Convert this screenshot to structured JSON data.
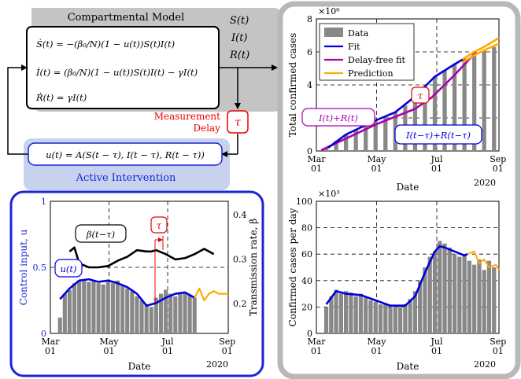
{
  "model": {
    "title": "Compartmental Model",
    "eq_s": "Ṡ(t) = −(β₀/N)(1 − u(t))S(t)I(t)",
    "eq_i": "İ(t) = (β₀/N)(1 − u(t))S(t)I(t) − γI(t)",
    "eq_r": "Ṙ(t) = γI(t)",
    "out_s": "S(t)",
    "out_i": "I(t)",
    "out_r": "R(t)"
  },
  "delay": {
    "line1": "Measurement",
    "line2": "Delay",
    "symbol": "τ"
  },
  "intervention": {
    "formula": "u(t) = A(S(t − τ), I(t − τ), R(t − τ))",
    "label": "Active Intervention"
  },
  "colors": {
    "fit": "#0000dd",
    "delay_free": "#aa00aa",
    "prediction": "#ffaa00",
    "data": "#888888",
    "delay": "#ee0000"
  },
  "charts": {
    "cumulative": {
      "type": "bar",
      "ylabel": "Total confirmed cases",
      "exponent": "×10⁶",
      "xlabel": "Date",
      "year": "2020",
      "yticks": [
        "0",
        "2",
        "4",
        "6",
        "8"
      ],
      "xticks": [
        [
          "Mar",
          "01"
        ],
        [
          "May",
          "01"
        ],
        [
          "Jul",
          "01"
        ],
        [
          "Sep",
          "01"
        ]
      ],
      "legend": [
        "Data",
        "Fit",
        "Delay-free fit",
        "Prediction"
      ],
      "ann_ir": "I(t)+R(t)",
      "ann_irdelay": "I(t−τ)+R(t−τ)",
      "ann_tau": "τ",
      "ylim": [
        0,
        8
      ],
      "xlim": [
        0,
        185
      ],
      "data_x": [
        10,
        20,
        30,
        40,
        50,
        60,
        70,
        80,
        90,
        100,
        110,
        120,
        130,
        140,
        150,
        160,
        170,
        180
      ],
      "data_y": [
        0.2,
        0.6,
        1.0,
        1.3,
        1.55,
        1.8,
        2.05,
        2.35,
        2.75,
        3.3,
        3.9,
        4.5,
        4.9,
        5.3,
        5.6,
        5.9,
        6.1,
        6.3
      ],
      "fit_x": [
        12,
        30,
        60,
        80,
        100,
        120,
        140,
        150
      ],
      "fit_y": [
        0.2,
        1.0,
        1.85,
        2.35,
        3.3,
        4.5,
        5.25,
        5.6
      ],
      "dfree_x": [
        5,
        30,
        60,
        80,
        100,
        120
      ],
      "dfree_y": [
        0.05,
        1.05,
        1.85,
        2.35,
        3.3,
        4.5
      ],
      "dfree2_x": [
        5,
        60,
        100,
        117,
        140,
        162
      ],
      "dfree2_y": [
        0.05,
        1.6,
        2.55,
        3.25,
        4.6,
        6.0
      ],
      "pred_x": [
        148,
        160,
        170,
        185
      ],
      "pred_y": [
        5.55,
        6.0,
        6.3,
        6.85
      ]
    },
    "daily": {
      "type": "bar",
      "ylabel": "Confirmed cases per day",
      "exponent": "×10³",
      "xlabel": "Date",
      "year": "2020",
      "yticks": [
        "0",
        "20",
        "40",
        "60",
        "80",
        "100"
      ],
      "xticks": [
        [
          "Mar",
          "01"
        ],
        [
          "May",
          "01"
        ],
        [
          "Jul",
          "01"
        ],
        [
          "Sep",
          "01"
        ]
      ],
      "ylim": [
        0,
        100
      ],
      "xlim": [
        0,
        185
      ],
      "data_x": [
        10,
        15,
        20,
        25,
        30,
        35,
        40,
        45,
        50,
        55,
        60,
        65,
        70,
        75,
        80,
        85,
        90,
        95,
        100,
        105,
        110,
        115,
        120,
        125,
        130,
        135,
        140,
        145,
        150,
        155,
        160,
        165,
        170,
        175,
        180
      ],
      "data_y": [
        20,
        28,
        33,
        30,
        32,
        31,
        28,
        30,
        27,
        25,
        24,
        22,
        22,
        20,
        21,
        20,
        22,
        26,
        32,
        40,
        50,
        58,
        62,
        70,
        68,
        65,
        60,
        58,
        60,
        55,
        52,
        56,
        48,
        55,
        50
      ],
      "fit_x": [
        10,
        20,
        30,
        45,
        60,
        75,
        90,
        100,
        110,
        120,
        125,
        130,
        140,
        150,
        153
      ],
      "fit_y": [
        22,
        32,
        30,
        29,
        25,
        21,
        21,
        28,
        46,
        62,
        66,
        65,
        62,
        59,
        60
      ],
      "pred_x": [
        153,
        160,
        165,
        170,
        175,
        182,
        185
      ],
      "pred_y": [
        60,
        62,
        53,
        56,
        50,
        52,
        48
      ]
    },
    "control": {
      "type": "line",
      "ylabel_left": "Control input, u",
      "ylabel_right": "Transmission rate, β",
      "xlabel": "Date",
      "year": "2020",
      "yticks_left": [
        "0",
        "0.5",
        "1"
      ],
      "yticks_right": [
        "0.2",
        "0.3",
        "0.4"
      ],
      "xticks": [
        [
          "Mar",
          "01"
        ],
        [
          "May",
          "01"
        ],
        [
          "Jul",
          "01"
        ],
        [
          "Sep",
          "01"
        ]
      ],
      "ann_beta": "β(t−τ)",
      "ann_u": "u(t)",
      "ann_tau": "τ",
      "ylim": [
        0,
        1
      ],
      "xlim": [
        0,
        185
      ],
      "data_x": [
        10,
        15,
        20,
        25,
        30,
        35,
        40,
        45,
        50,
        55,
        60,
        65,
        70,
        75,
        80,
        85,
        90,
        95,
        100,
        105,
        110,
        115,
        120,
        125,
        130,
        135,
        140,
        145,
        150
      ],
      "data_y": [
        0.12,
        0.3,
        0.33,
        0.38,
        0.4,
        0.41,
        0.39,
        0.4,
        0.38,
        0.37,
        0.39,
        0.38,
        0.4,
        0.36,
        0.34,
        0.32,
        0.28,
        0.25,
        0.22,
        0.2,
        0.27,
        0.3,
        0.33,
        0.3,
        0.28,
        0.3,
        0.31,
        0.29,
        0.27
      ],
      "u_x": [
        10,
        20,
        30,
        40,
        50,
        60,
        70,
        80,
        90,
        100,
        110,
        120,
        130,
        140,
        150
      ],
      "u_y": [
        0.26,
        0.34,
        0.4,
        0.41,
        0.39,
        0.4,
        0.38,
        0.35,
        0.3,
        0.21,
        0.23,
        0.27,
        0.3,
        0.31,
        0.27
      ],
      "upred_x": [
        150,
        155,
        160,
        165,
        170,
        175,
        185
      ],
      "upred_y": [
        0.27,
        0.34,
        0.25,
        0.3,
        0.32,
        0.3,
        0.3
      ],
      "beta_x": [
        20,
        25,
        30,
        40,
        50,
        60,
        70,
        80,
        90,
        100,
        105,
        110,
        120,
        130,
        140,
        150,
        160,
        170
      ],
      "beta_y": [
        0.62,
        0.65,
        0.53,
        0.5,
        0.5,
        0.51,
        0.55,
        0.58,
        0.63,
        0.62,
        0.62,
        0.63,
        0.6,
        0.56,
        0.57,
        0.6,
        0.64,
        0.6
      ]
    }
  }
}
